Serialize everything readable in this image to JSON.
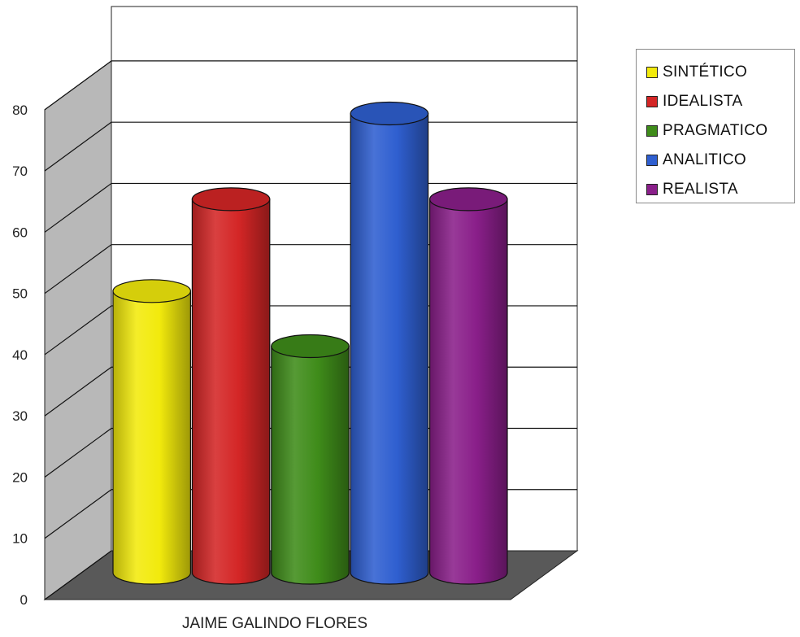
{
  "chart_data": {
    "type": "bar",
    "style": "3d-cylinder",
    "categories": [
      "JAIME GALINDO FLORES"
    ],
    "series": [
      {
        "name": "SINTÉTICO",
        "values": [
          46
        ],
        "color": "#f2ea0c"
      },
      {
        "name": "IDEALISTA",
        "values": [
          61
        ],
        "color": "#d42626"
      },
      {
        "name": "PRAGMATICO",
        "values": [
          37
        ],
        "color": "#3f8c1a"
      },
      {
        "name": "ANALITICO",
        "values": [
          75
        ],
        "color": "#2f5fd0"
      },
      {
        "name": "REALISTA",
        "values": [
          61
        ],
        "color": "#8a1f8a"
      }
    ],
    "yticks": [
      "0",
      "10",
      "20",
      "30",
      "40",
      "50",
      "60",
      "70",
      "80"
    ],
    "ylim": [
      0,
      80
    ],
    "grid": true,
    "legend_position": "right",
    "wall_color": "#b8b8b8",
    "floor_color": "#595959"
  }
}
